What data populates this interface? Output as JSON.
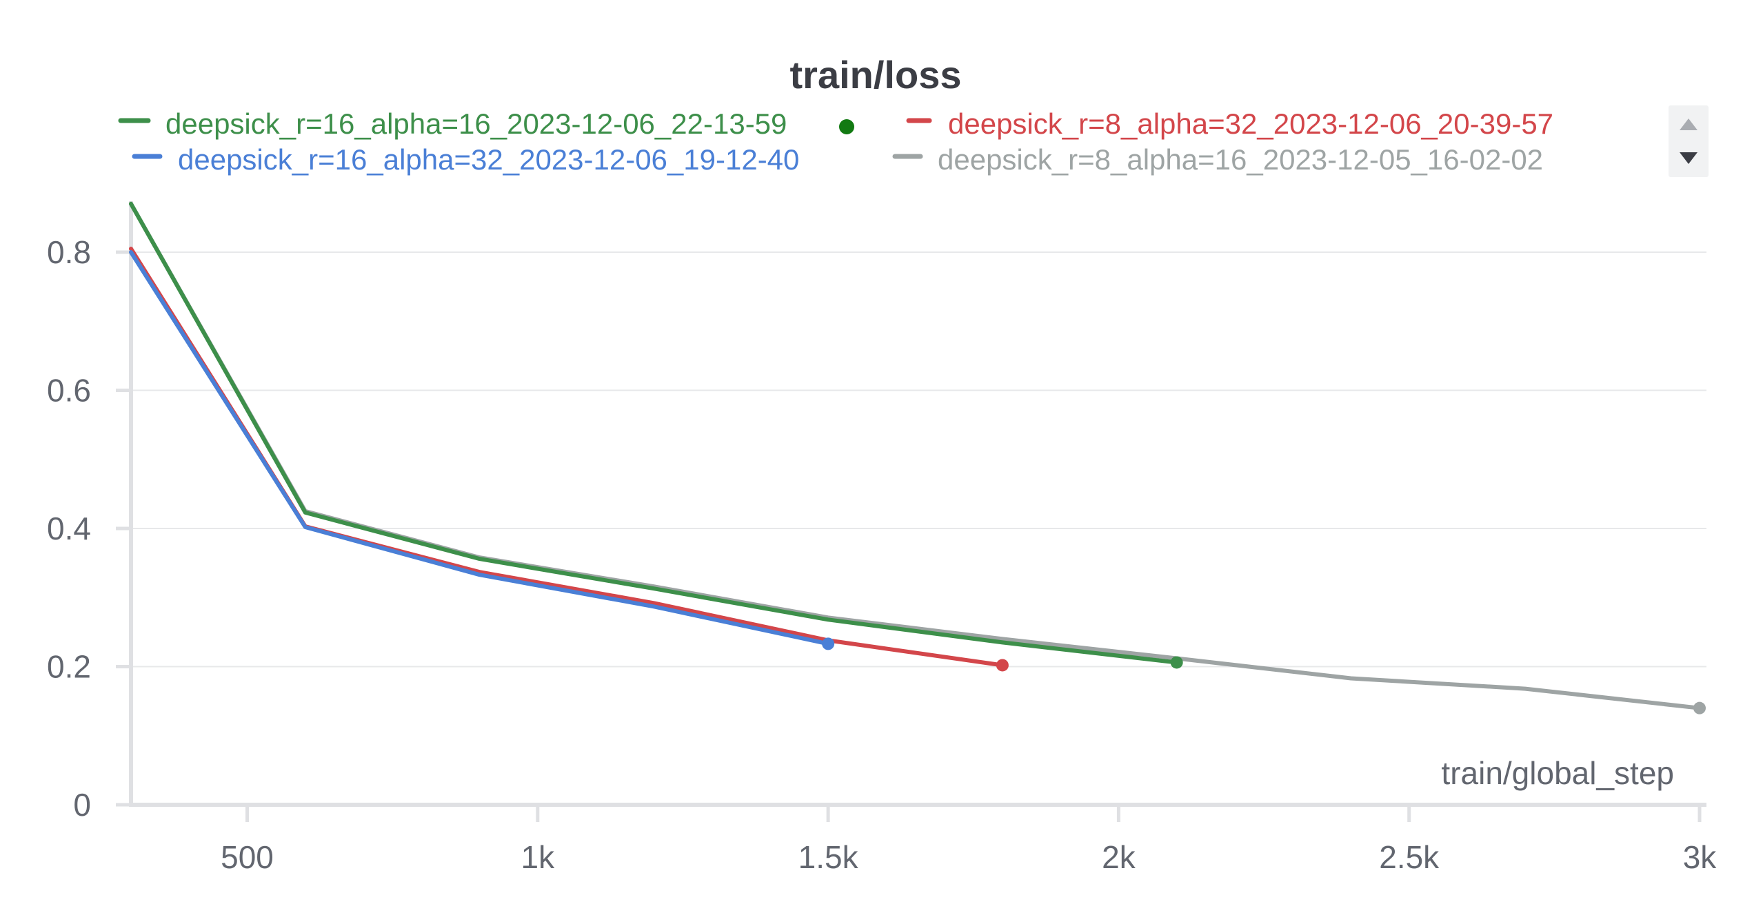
{
  "chart_data": {
    "type": "line",
    "title": "train/loss",
    "xlabel": "train/global_step",
    "ylabel": "",
    "xlim": [
      300,
      3000
    ],
    "ylim": [
      0,
      0.87
    ],
    "x_ticks": [
      500,
      1000,
      1500,
      2000,
      2500,
      3000
    ],
    "x_tick_labels": [
      "500",
      "1k",
      "1.5k",
      "2k",
      "2.5k",
      "3k"
    ],
    "y_ticks": [
      0,
      0.2,
      0.4,
      0.6,
      0.8
    ],
    "y_tick_labels": [
      "0",
      "0.2",
      "0.4",
      "0.6",
      "0.8"
    ],
    "grid": true,
    "legend_position": "top",
    "series": [
      {
        "name": "deepsick_r=8_alpha=16_2023-12-05_16-02-02",
        "color": "#9ea4a4",
        "x": [
          300,
          600,
          900,
          1200,
          1500,
          1800,
          2100,
          2400,
          2700,
          3000
        ],
        "y": [
          0.87,
          0.425,
          0.358,
          0.316,
          0.271,
          0.24,
          0.212,
          0.183,
          0.168,
          0.14
        ]
      },
      {
        "name": "deepsick_r=16_alpha=16_2023-12-06_22-13-59",
        "color": "#3d8f4a",
        "x": [
          300,
          600,
          900,
          1200,
          1500,
          1800,
          2100
        ],
        "y": [
          0.87,
          0.423,
          0.356,
          0.313,
          0.268,
          0.235,
          0.206
        ]
      },
      {
        "name": "deepsick_r=8_alpha=32_2023-12-06_20-39-57",
        "color": "#d3464a",
        "x": [
          300,
          600,
          900,
          1200,
          1500,
          1800
        ],
        "y": [
          0.805,
          0.403,
          0.337,
          0.292,
          0.238,
          0.202
        ]
      },
      {
        "name": "deepsick_r=16_alpha=32_2023-12-06_19-12-40",
        "color": "#4a7fd6",
        "x": [
          300,
          600,
          900,
          1200,
          1500
        ],
        "y": [
          0.8,
          0.402,
          0.333,
          0.287,
          0.233
        ]
      }
    ],
    "legend": [
      {
        "name": "deepsick_r=16_alpha=16_2023-12-06_22-13-59",
        "color": "#3d8f4a",
        "active": true
      },
      {
        "name": "deepsick_r=8_alpha=32_2023-12-06_20-39-57",
        "color": "#d3464a"
      },
      {
        "name": "deepsick_r=16_alpha=32_2023-12-06_19-12-40",
        "color": "#4a7fd6"
      },
      {
        "name": "deepsick_r=8_alpha=16_2023-12-05_16-02-02",
        "color": "#9ea4a4"
      }
    ]
  },
  "legend_scroll": {
    "up_icon": "triangle-up-icon",
    "down_icon": "triangle-down-icon"
  }
}
